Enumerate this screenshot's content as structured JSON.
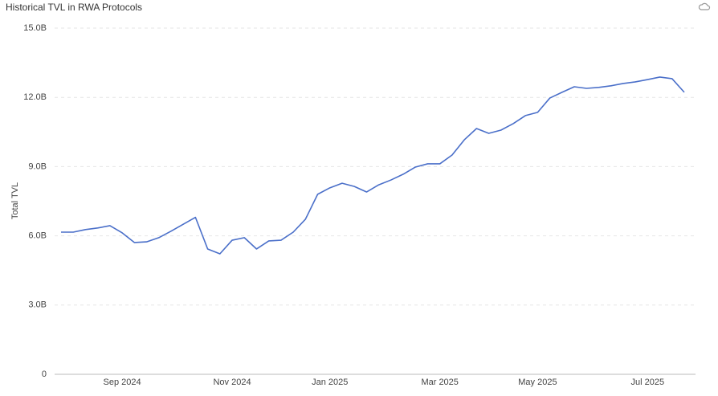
{
  "chart_data": {
    "type": "line",
    "title": "Historical TVL in RWA Protocols",
    "y_label": "Total TVL",
    "categories": [
      null,
      null,
      null,
      null,
      null,
      "Sep 2024",
      null,
      null,
      null,
      null,
      null,
      null,
      null,
      null,
      "Nov 2024",
      null,
      null,
      null,
      null,
      null,
      null,
      null,
      "Jan 2025",
      null,
      null,
      null,
      null,
      null,
      null,
      null,
      null,
      "Mar 2025",
      null,
      null,
      null,
      null,
      null,
      null,
      null,
      "May 2025",
      null,
      null,
      null,
      null,
      null,
      null,
      null,
      null,
      "Jul 2025",
      null,
      null,
      null
    ],
    "series": [
      {
        "name": "Total TVL",
        "color": "#4a6fc9",
        "values": [
          6.16,
          6.16,
          6.27,
          6.34,
          6.44,
          6.13,
          5.71,
          5.74,
          5.92,
          6.2,
          6.5,
          6.8,
          5.43,
          5.22,
          5.81,
          5.92,
          5.43,
          5.78,
          5.81,
          6.16,
          6.72,
          7.8,
          8.08,
          8.28,
          8.14,
          7.9,
          8.21,
          8.42,
          8.67,
          8.98,
          9.12,
          9.12,
          9.5,
          10.16,
          10.65,
          10.44,
          10.58,
          10.86,
          11.21,
          11.35,
          11.97,
          12.22,
          12.46,
          12.39,
          12.43,
          12.5,
          12.6,
          12.67,
          12.77,
          12.88,
          12.81,
          12.22
        ]
      }
    ],
    "ylim": [
      0,
      15
    ],
    "yticks": [
      0,
      {
        "value": 3,
        "label": "3.0B"
      },
      {
        "value": 6,
        "label": "6.0B"
      },
      {
        "value": 9,
        "label": "9.0B"
      },
      {
        "value": 12,
        "label": "12.0B"
      },
      {
        "value": 15,
        "label": "15.0B"
      }
    ],
    "grid": true
  }
}
